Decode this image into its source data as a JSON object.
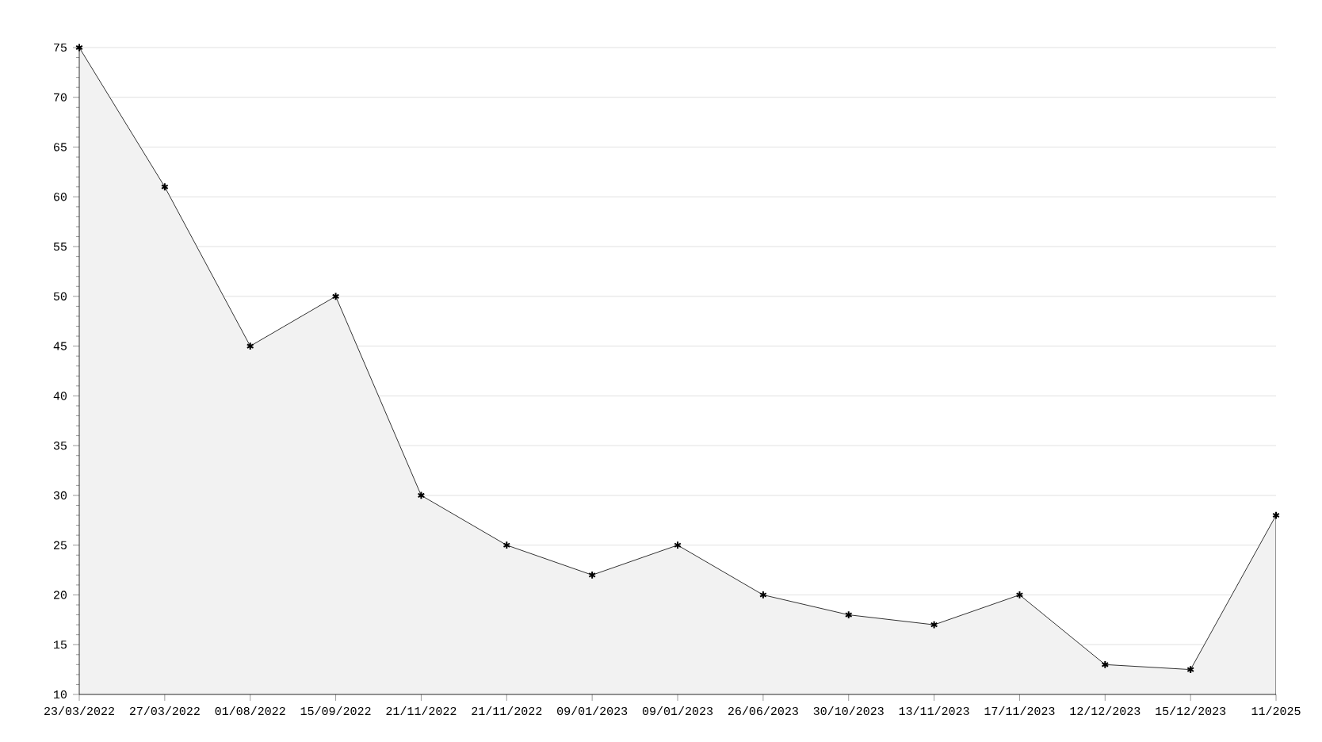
{
  "chart_data": {
    "type": "area",
    "categories": [
      "23/03/2022",
      "27/03/2022",
      "01/08/2022",
      "15/09/2022",
      "21/11/2022",
      "21/11/2022",
      "09/01/2023",
      "09/01/2023",
      "26/06/2023",
      "30/10/2023",
      "13/11/2023",
      "17/11/2023",
      "12/12/2023",
      "15/12/2023",
      "11/2025"
    ],
    "values": [
      75,
      61,
      45,
      50,
      30,
      25,
      22,
      25,
      20,
      18,
      17,
      20,
      13,
      12.5,
      28
    ],
    "color": "#000000",
    "ylim": [
      10,
      75
    ],
    "yticks": [
      10,
      15,
      20,
      25,
      30,
      35,
      40,
      45,
      50,
      55,
      60,
      65,
      70,
      75
    ],
    "grid": "y",
    "marker": "cross",
    "line_style": "solid"
  }
}
